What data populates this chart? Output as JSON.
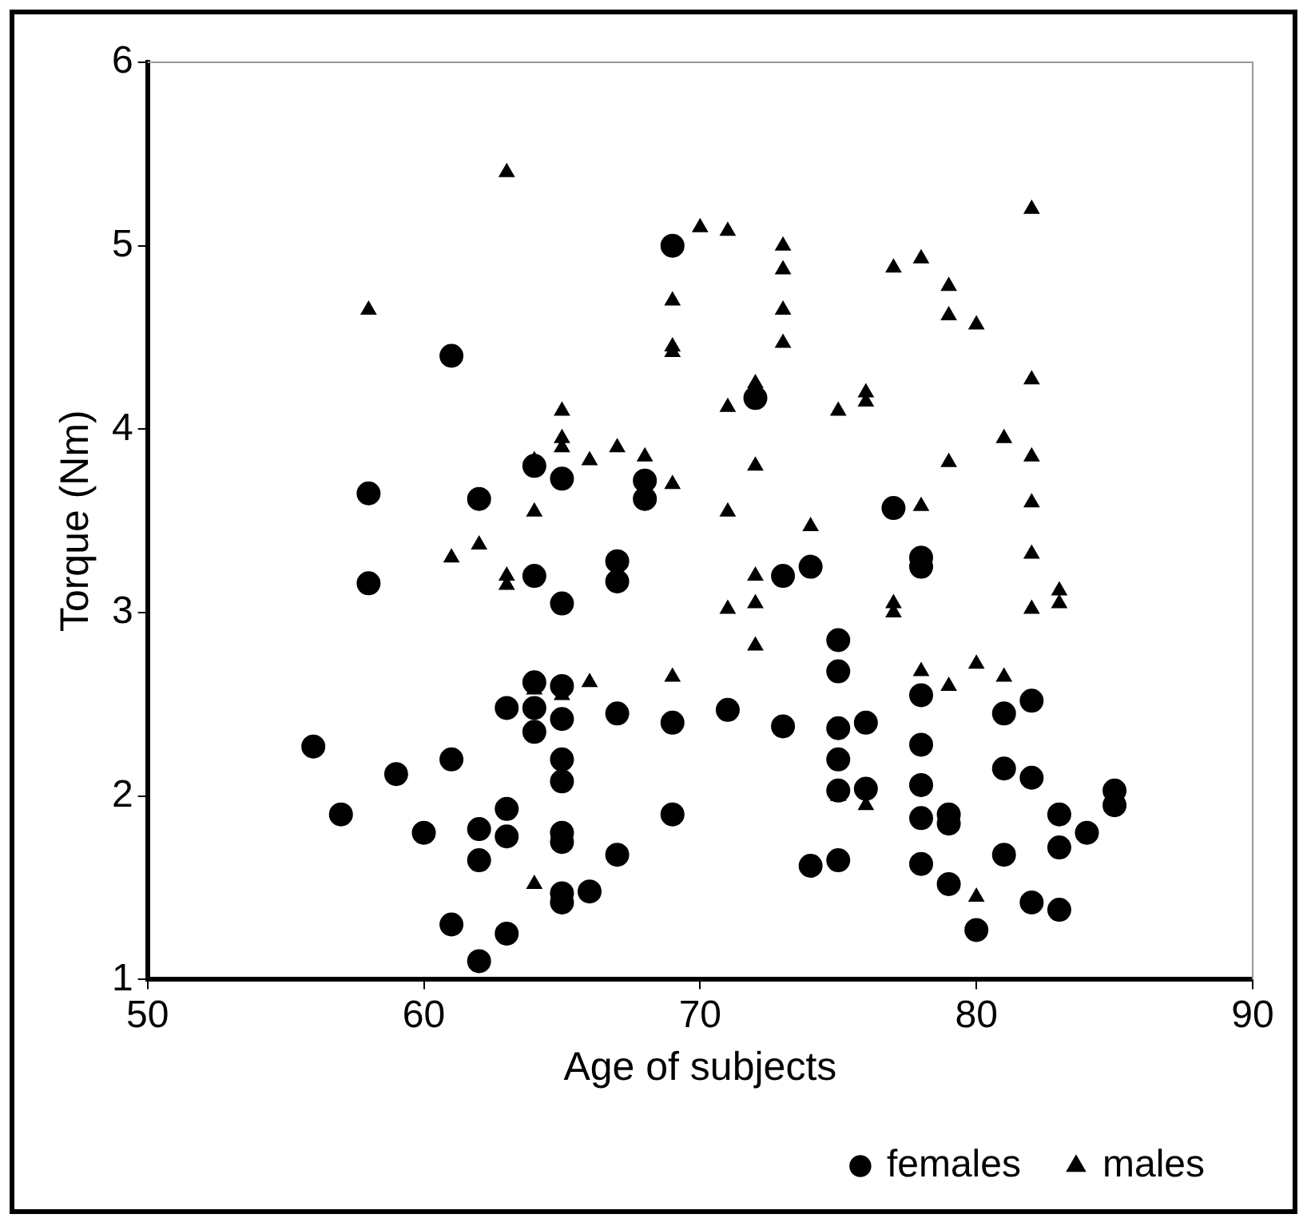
{
  "chart_data": {
    "type": "scatter",
    "xlabel": "Age of subjects",
    "ylabel": "Torque (Nm)",
    "xlim": [
      50,
      90
    ],
    "xticks": [
      50,
      60,
      70,
      80,
      90
    ],
    "ylim": [
      1,
      6
    ],
    "yticks": [
      1,
      2,
      3,
      4,
      5,
      6
    ],
    "grid": false,
    "legend": "bottom right",
    "series": [
      {
        "name": "females",
        "color": "#000000",
        "marker": "circle",
        "x": [
          56,
          57,
          58,
          58,
          59,
          60,
          61,
          61,
          61,
          62,
          62,
          62,
          62,
          63,
          63,
          63,
          63,
          64,
          64,
          64,
          64,
          64,
          65,
          65,
          65,
          65,
          65,
          65,
          65,
          65,
          65,
          65,
          66,
          67,
          67,
          67,
          67,
          68,
          68,
          69,
          69,
          69,
          71,
          72,
          73,
          73,
          74,
          74,
          75,
          75,
          75,
          75,
          75,
          75,
          76,
          76,
          77,
          78,
          78,
          78,
          78,
          78,
          78,
          78,
          79,
          79,
          79,
          80,
          81,
          81,
          81,
          82,
          82,
          82,
          83,
          83,
          83,
          84,
          85,
          85
        ],
        "values": [
          2.27,
          1.9,
          3.65,
          3.16,
          2.12,
          1.8,
          4.4,
          2.2,
          1.3,
          3.62,
          1.82,
          1.65,
          1.1,
          2.48,
          1.93,
          1.78,
          1.25,
          3.8,
          3.2,
          2.62,
          2.48,
          2.35,
          3.73,
          3.05,
          2.6,
          2.42,
          2.2,
          2.08,
          1.8,
          1.75,
          1.47,
          1.42,
          1.48,
          3.28,
          3.17,
          2.45,
          1.68,
          3.72,
          3.62,
          5.0,
          2.4,
          1.9,
          2.47,
          4.17,
          3.2,
          2.38,
          3.25,
          1.62,
          2.85,
          2.68,
          2.37,
          2.2,
          2.03,
          1.65,
          2.4,
          2.04,
          3.57,
          3.3,
          3.25,
          2.55,
          2.28,
          2.06,
          1.88,
          1.63,
          1.9,
          1.85,
          1.52,
          1.27,
          2.45,
          2.15,
          1.68,
          2.52,
          2.1,
          1.42,
          1.9,
          1.72,
          1.38,
          1.8,
          2.03,
          1.95
        ]
      },
      {
        "name": "males",
        "color": "#000000",
        "marker": "triangle",
        "x": [
          58,
          61,
          62,
          63,
          63,
          63,
          64,
          64,
          64,
          64,
          65,
          65,
          65,
          65,
          66,
          66,
          67,
          68,
          69,
          69,
          69,
          69,
          69,
          70,
          71,
          71,
          71,
          71,
          72,
          72,
          72,
          72,
          72,
          73,
          73,
          73,
          73,
          74,
          75,
          75,
          76,
          76,
          76,
          77,
          77,
          77,
          78,
          78,
          78,
          79,
          79,
          79,
          79,
          80,
          80,
          80,
          81,
          81,
          82,
          82,
          82,
          82,
          82,
          82,
          83,
          83
        ],
        "values": [
          4.65,
          3.3,
          3.37,
          5.4,
          3.2,
          3.15,
          3.83,
          3.55,
          2.58,
          1.52,
          4.1,
          3.95,
          3.9,
          2.55,
          3.83,
          2.62,
          3.9,
          3.85,
          4.7,
          4.45,
          4.42,
          3.7,
          2.65,
          5.1,
          5.08,
          4.12,
          3.55,
          3.02,
          4.25,
          3.8,
          3.2,
          3.05,
          2.82,
          5.0,
          4.87,
          4.65,
          4.47,
          3.47,
          4.1,
          2.0,
          4.2,
          4.15,
          1.95,
          4.88,
          3.05,
          3.0,
          4.93,
          3.58,
          2.68,
          4.78,
          4.62,
          3.82,
          2.6,
          4.57,
          2.72,
          1.45,
          3.95,
          2.65,
          5.2,
          4.27,
          3.85,
          3.6,
          3.32,
          3.02,
          3.12,
          3.05
        ]
      }
    ]
  }
}
